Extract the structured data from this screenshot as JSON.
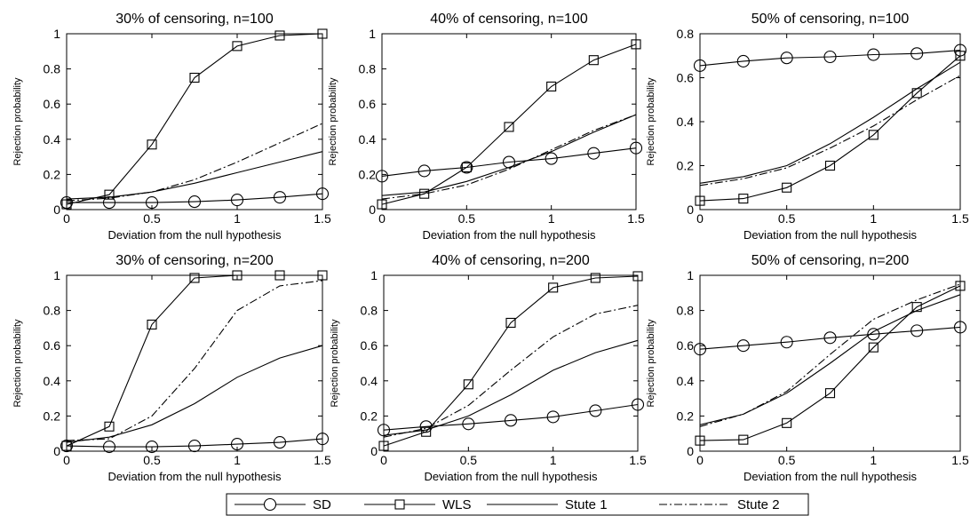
{
  "legend": [
    {
      "name": "SD",
      "marker": "circle",
      "dash": "none"
    },
    {
      "name": "WLS",
      "marker": "square",
      "dash": "none"
    },
    {
      "name": "Stute 1",
      "marker": "none",
      "dash": "none"
    },
    {
      "name": "Stute 2",
      "marker": "none",
      "dash": "dashdot"
    }
  ],
  "chart_data": [
    {
      "type": "line",
      "title": "30% of censoring, n=100",
      "xlabel": "Deviation from the null hypothesis",
      "ylabel": "Rejection probability",
      "xlim": [
        0,
        1.5
      ],
      "ylim": [
        0,
        1
      ],
      "xticks": [
        "0",
        "0.5",
        "1",
        "1.5"
      ],
      "yticks": [
        "0",
        "0.2",
        "0.4",
        "0.6",
        "0.8",
        "1"
      ],
      "x": [
        0,
        0.25,
        0.5,
        0.75,
        1,
        1.25,
        1.5
      ],
      "series": [
        {
          "name": "SD",
          "values": [
            0.04,
            0.04,
            0.04,
            0.045,
            0.055,
            0.07,
            0.09
          ]
        },
        {
          "name": "WLS",
          "values": [
            0.03,
            0.085,
            0.37,
            0.75,
            0.93,
            0.99,
            1.0
          ]
        },
        {
          "name": "Stute 1",
          "values": [
            0.06,
            0.07,
            0.1,
            0.15,
            0.21,
            0.27,
            0.33
          ]
        },
        {
          "name": "Stute 2",
          "values": [
            0.05,
            0.065,
            0.1,
            0.17,
            0.27,
            0.38,
            0.49
          ]
        }
      ]
    },
    {
      "type": "line",
      "title": "40% of censoring, n=100",
      "xlabel": "Deviation from the null hypothesis",
      "ylabel": "Rejection probability",
      "xlim": [
        0,
        1.5
      ],
      "ylim": [
        0,
        1
      ],
      "xticks": [
        "0",
        "0.5",
        "1",
        "1.5"
      ],
      "yticks": [
        "0",
        "0.2",
        "0.4",
        "0.6",
        "0.8",
        "1"
      ],
      "x": [
        0,
        0.25,
        0.5,
        0.75,
        1,
        1.25,
        1.5
      ],
      "series": [
        {
          "name": "SD",
          "values": [
            0.19,
            0.22,
            0.24,
            0.27,
            0.29,
            0.32,
            0.35
          ]
        },
        {
          "name": "WLS",
          "values": [
            0.03,
            0.09,
            0.24,
            0.47,
            0.7,
            0.85,
            0.94
          ]
        },
        {
          "name": "Stute 1",
          "values": [
            0.08,
            0.1,
            0.16,
            0.24,
            0.33,
            0.44,
            0.54
          ]
        },
        {
          "name": "Stute 2",
          "values": [
            0.06,
            0.09,
            0.14,
            0.23,
            0.34,
            0.45,
            0.54
          ]
        }
      ]
    },
    {
      "type": "line",
      "title": "50% of censoring, n=100",
      "xlabel": "Deviation from the null hypothesis",
      "ylabel": "Rejection probability",
      "xlim": [
        0,
        1.5
      ],
      "ylim": [
        0,
        0.8
      ],
      "xticks": [
        "0",
        "0.5",
        "1",
        "1.5"
      ],
      "yticks": [
        "0",
        "0.2",
        "0.4",
        "0.6",
        "0.8"
      ],
      "x": [
        0,
        0.25,
        0.5,
        0.75,
        1,
        1.25,
        1.5
      ],
      "series": [
        {
          "name": "SD",
          "values": [
            0.655,
            0.675,
            0.69,
            0.695,
            0.705,
            0.71,
            0.725
          ]
        },
        {
          "name": "WLS",
          "values": [
            0.04,
            0.05,
            0.1,
            0.2,
            0.34,
            0.53,
            0.7
          ]
        },
        {
          "name": "Stute 1",
          "values": [
            0.12,
            0.15,
            0.2,
            0.3,
            0.42,
            0.55,
            0.67
          ]
        },
        {
          "name": "Stute 2",
          "values": [
            0.11,
            0.14,
            0.19,
            0.28,
            0.38,
            0.5,
            0.61
          ]
        }
      ]
    },
    {
      "type": "line",
      "title": "30% of censoring, n=200",
      "xlabel": "Deviation from the null hypothesis",
      "ylabel": "Rejection probability",
      "xlim": [
        0,
        1.5
      ],
      "ylim": [
        0,
        1
      ],
      "xticks": [
        "0",
        "0.5",
        "1",
        "1.5"
      ],
      "yticks": [
        "0",
        "0.2",
        "0.4",
        "0.6",
        "0.8",
        "1"
      ],
      "x": [
        0,
        0.25,
        0.5,
        0.75,
        1,
        1.25,
        1.5
      ],
      "series": [
        {
          "name": "SD",
          "values": [
            0.03,
            0.025,
            0.025,
            0.03,
            0.04,
            0.05,
            0.07
          ]
        },
        {
          "name": "WLS",
          "values": [
            0.03,
            0.14,
            0.72,
            0.985,
            1.0,
            1.0,
            1.0
          ]
        },
        {
          "name": "Stute 1",
          "values": [
            0.05,
            0.08,
            0.15,
            0.27,
            0.42,
            0.53,
            0.6
          ]
        },
        {
          "name": "Stute 2",
          "values": [
            0.06,
            0.07,
            0.2,
            0.47,
            0.8,
            0.94,
            0.97
          ]
        }
      ]
    },
    {
      "type": "line",
      "title": "40% of censoring, n=200",
      "xlabel": "Deviation from the null hypothesis",
      "ylabel": "Rejection probability",
      "xlim": [
        0,
        1.5
      ],
      "ylim": [
        0,
        1
      ],
      "xticks": [
        "0",
        "0.5",
        "1",
        "1.5"
      ],
      "yticks": [
        "0",
        "0.2",
        "0.4",
        "0.6",
        "0.8",
        "1"
      ],
      "x": [
        0,
        0.25,
        0.5,
        0.75,
        1,
        1.25,
        1.5
      ],
      "series": [
        {
          "name": "SD",
          "values": [
            0.12,
            0.14,
            0.155,
            0.175,
            0.195,
            0.23,
            0.265
          ]
        },
        {
          "name": "WLS",
          "values": [
            0.03,
            0.11,
            0.38,
            0.73,
            0.93,
            0.985,
            0.995
          ]
        },
        {
          "name": "Stute 1",
          "values": [
            0.09,
            0.12,
            0.2,
            0.32,
            0.46,
            0.56,
            0.63
          ]
        },
        {
          "name": "Stute 2",
          "values": [
            0.08,
            0.13,
            0.26,
            0.46,
            0.65,
            0.78,
            0.83
          ]
        }
      ]
    },
    {
      "type": "line",
      "title": "50% of censoring, n=200",
      "xlabel": "Deviation from the null hypothesis",
      "ylabel": "Rejection probability",
      "xlim": [
        0,
        1.5
      ],
      "ylim": [
        0,
        1
      ],
      "xticks": [
        "0",
        "0.5",
        "1",
        "1.5"
      ],
      "yticks": [
        "0",
        "0.2",
        "0.4",
        "0.6",
        "0.8",
        "1"
      ],
      "x": [
        0,
        0.25,
        0.5,
        0.75,
        1,
        1.25,
        1.5
      ],
      "series": [
        {
          "name": "SD",
          "values": [
            0.58,
            0.6,
            0.62,
            0.645,
            0.665,
            0.685,
            0.705
          ]
        },
        {
          "name": "WLS",
          "values": [
            0.06,
            0.065,
            0.16,
            0.33,
            0.59,
            0.82,
            0.94
          ]
        },
        {
          "name": "Stute 1",
          "values": [
            0.15,
            0.21,
            0.33,
            0.5,
            0.68,
            0.8,
            0.89
          ]
        },
        {
          "name": "Stute 2",
          "values": [
            0.14,
            0.21,
            0.34,
            0.55,
            0.75,
            0.86,
            0.95
          ]
        }
      ]
    }
  ]
}
